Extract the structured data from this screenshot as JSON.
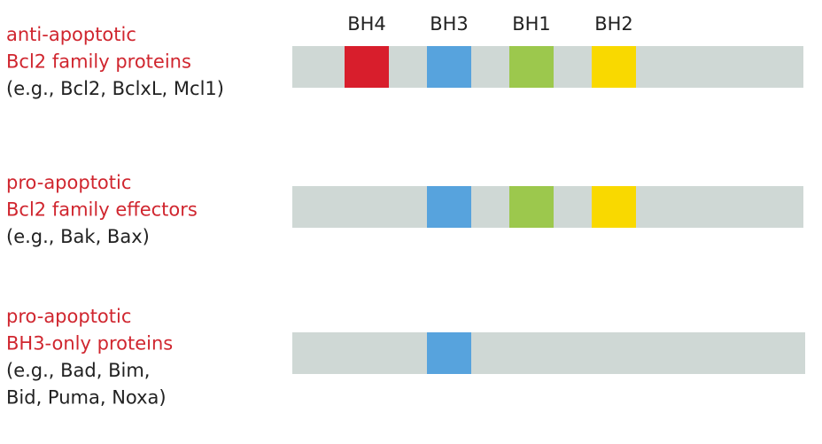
{
  "domains": [
    {
      "label": "BH4",
      "color": "#d81e2c"
    },
    {
      "label": "BH3",
      "color": "#57a3dd"
    },
    {
      "label": "BH1",
      "color": "#9cc84d"
    },
    {
      "label": "BH2",
      "color": "#f9d900"
    }
  ],
  "rows": [
    {
      "title": [
        "anti-apoptotic",
        "Bcl2 family proteins"
      ],
      "examples": [
        "(e.g., Bcl2, BclxL, Mcl1)"
      ],
      "domains": [
        "BH4",
        "BH3",
        "BH1",
        "BH2"
      ]
    },
    {
      "title": [
        "pro-apoptotic",
        "Bcl2 family effectors"
      ],
      "examples": [
        "(e.g., Bak, Bax)"
      ],
      "domains": [
        "BH3",
        "BH1",
        "BH2"
      ]
    },
    {
      "title": [
        "pro-apoptotic",
        "BH3-only proteins"
      ],
      "examples": [
        "(e.g., Bad, Bim,",
        "Bid, Puma, Noxa)"
      ],
      "domains": [
        "BH3"
      ]
    }
  ]
}
